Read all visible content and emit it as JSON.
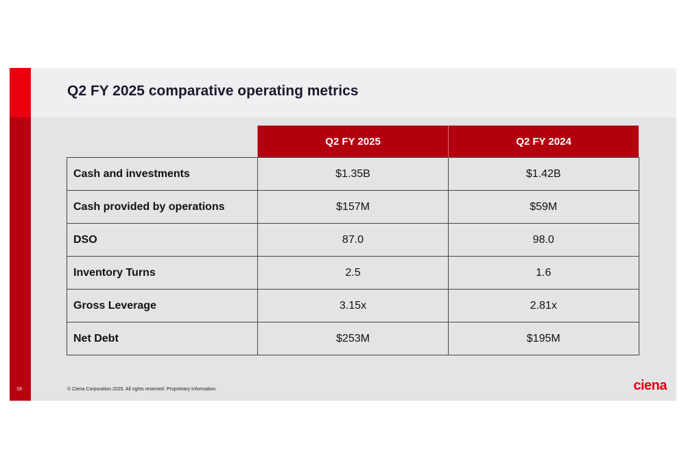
{
  "slide": {
    "title": "Q2 FY 2025 comparative operating metrics",
    "page_number": "19",
    "footer": "© Ciena Corporation 2025. All rights reserved. Proprietary Information.",
    "logo_text": "ciena",
    "brand_color": "#e8000f",
    "header_color": "#b3000f"
  },
  "table": {
    "columns": [
      "Q2 FY 2025",
      "Q2 FY 2024"
    ],
    "rows": [
      {
        "label": "Cash and investments",
        "values": [
          "$1.35B",
          "$1.42B"
        ]
      },
      {
        "label": "Cash provided by operations",
        "values": [
          "$157M",
          "$59M"
        ]
      },
      {
        "label": "DSO",
        "values": [
          "87.0",
          "98.0"
        ]
      },
      {
        "label": "Inventory Turns",
        "values": [
          "2.5",
          "1.6"
        ]
      },
      {
        "label": "Gross Leverage",
        "values": [
          "3.15x",
          "2.81x"
        ]
      },
      {
        "label": "Net Debt",
        "values": [
          "$253M",
          "$195M"
        ]
      }
    ]
  }
}
